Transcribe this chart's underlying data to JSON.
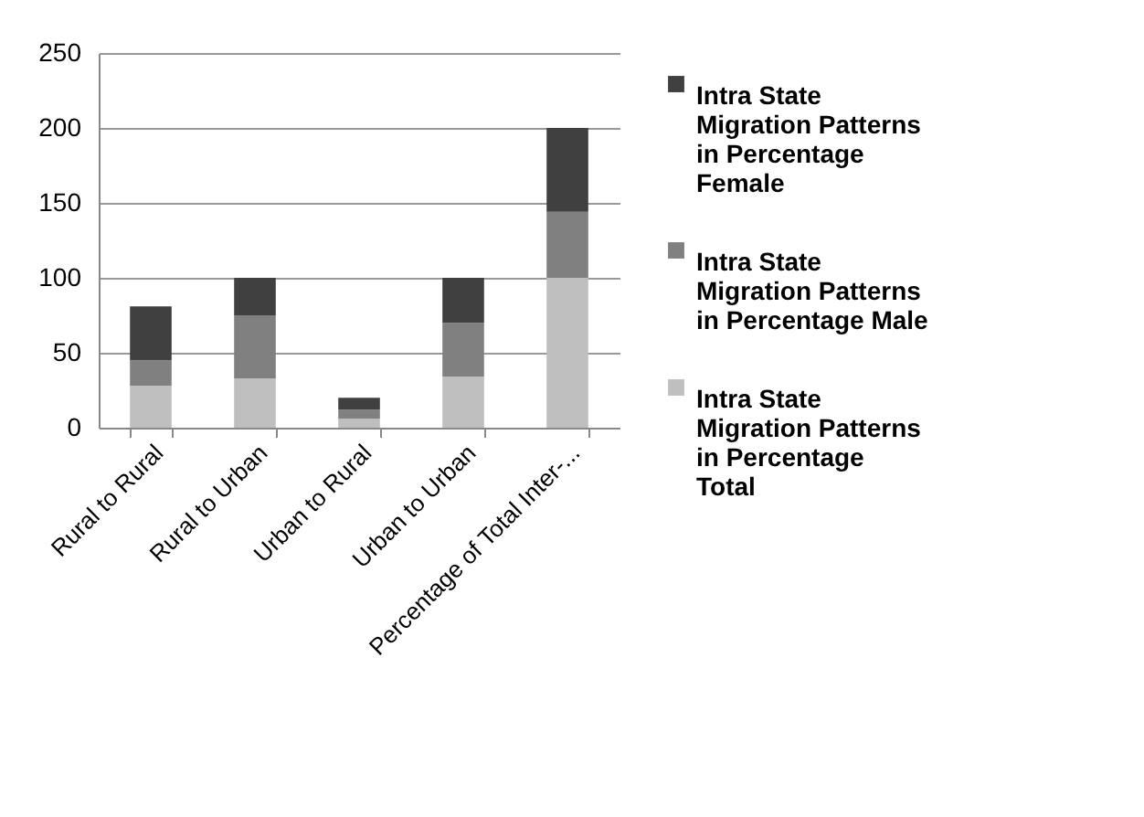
{
  "chart_data": {
    "type": "bar",
    "stacked": true,
    "categories": [
      "Rural to Rural",
      "Rural to Urban",
      "Urban to Rural",
      "Urban to Urban",
      "Percentage of Total Inter-..."
    ],
    "series": [
      {
        "name": "Intra State Migration Patterns in Percentage Total",
        "color": "#bfbfbf",
        "values": [
          28,
          33,
          6,
          34,
          100
        ]
      },
      {
        "name": "Intra State Migration Patterns in Percentage Male",
        "color": "#808080",
        "values": [
          17,
          42,
          6,
          36,
          44
        ]
      },
      {
        "name": "Intra State Migration Patterns in Percentage Female",
        "color": "#404040",
        "values": [
          36,
          25,
          8,
          30,
          56
        ]
      }
    ],
    "ylim": [
      0,
      250
    ],
    "yticks": [
      0,
      50,
      100,
      150,
      200,
      250
    ],
    "grid": "y",
    "legend": "right"
  }
}
